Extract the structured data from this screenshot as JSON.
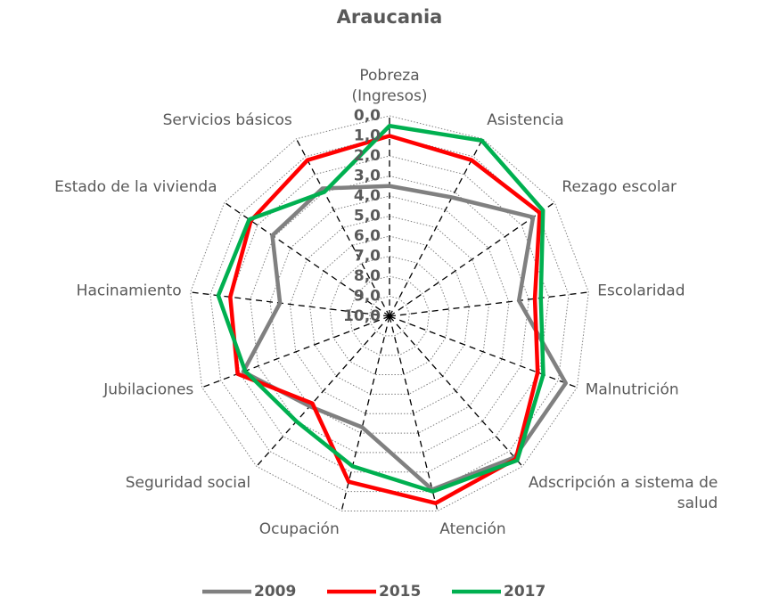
{
  "chart_data": {
    "type": "radar",
    "title": "Araucania",
    "categories": [
      "Pobreza\n(Ingresos)",
      "Asistencia",
      "Rezago escolar",
      "Escolaridad",
      "Malnutrición",
      "Adscripción a sistema de\nsalud",
      "Atención",
      "Ocupación",
      "Seguridad social",
      "Jubilaciones",
      "Hacinamiento",
      "Estado de la vivienda",
      "Servicios básicos"
    ],
    "series": [
      {
        "name": "2009",
        "color": "#808080",
        "values": [
          3.5,
          3.3,
          1.3,
          3.5,
          0.6,
          0.6,
          1.1,
          4.3,
          4.0,
          2.2,
          4.5,
          2.9,
          2.8
        ]
      },
      {
        "name": "2015",
        "color": "#ff0000",
        "values": [
          1.0,
          1.2,
          0.9,
          2.7,
          2.1,
          0.5,
          0.4,
          1.5,
          4.2,
          1.9,
          2.0,
          1.6,
          1.2
        ]
      },
      {
        "name": "2017",
        "color": "#00b050",
        "values": [
          0.5,
          0.1,
          0.7,
          2.4,
          1.8,
          0.4,
          1.0,
          2.3,
          3.0,
          2.3,
          1.4,
          1.5,
          3.0
        ]
      }
    ],
    "ylim": [
      10,
      0
    ],
    "yticks": [
      {
        "value": 0,
        "label": "0,0"
      },
      {
        "value": 1,
        "label": "1,0"
      },
      {
        "value": 2,
        "label": "2,0"
      },
      {
        "value": 3,
        "label": "3,0"
      },
      {
        "value": 4,
        "label": "4,0"
      },
      {
        "value": 5,
        "label": "5,0"
      },
      {
        "value": 6,
        "label": "6,0"
      },
      {
        "value": 7,
        "label": "7,0"
      },
      {
        "value": 8,
        "label": "8,0"
      },
      {
        "value": 9,
        "label": "9,0"
      },
      {
        "value": 10,
        "label": "10,0"
      }
    ],
    "grid": true,
    "legend": "bottom"
  }
}
